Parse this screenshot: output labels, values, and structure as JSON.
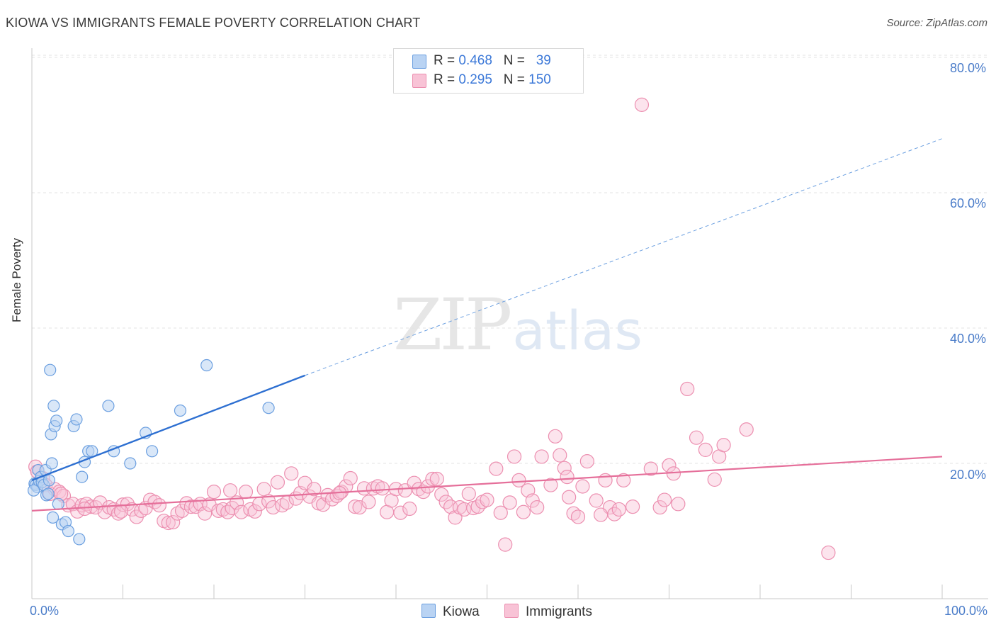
{
  "title": "KIOWA VS IMMIGRANTS FEMALE POVERTY CORRELATION CHART",
  "source": "Source: ZipAtlas.com",
  "watermark": {
    "zip": "ZIP",
    "atlas": "atlas"
  },
  "legend": {
    "kiowa": {
      "r_label": "R =",
      "r_value": "0.468",
      "n_label": "N =",
      "n_value": "39"
    },
    "immigrants": {
      "r_label": "R =",
      "r_value": "0.295",
      "n_label": "N =",
      "n_value": "150"
    }
  },
  "colors": {
    "kiowa_fill": "#b9d3f3",
    "kiowa_stroke": "#6b9fe0",
    "kiowa_line": "#2d6fd1",
    "imm_fill": "#f8c3d6",
    "imm_stroke": "#ec8fb0",
    "imm_line": "#e56f9a",
    "grid": "#e3e3e3",
    "axis_text": "#4a7cc9"
  },
  "chart_data": {
    "type": "scatter",
    "title": "KIOWA VS IMMIGRANTS FEMALE POVERTY CORRELATION CHART",
    "xlabel": "",
    "ylabel": "Female Poverty",
    "xlim": [
      0,
      100
    ],
    "ylim": [
      0,
      82
    ],
    "x_tick_labels": [
      "0.0%",
      "100.0%"
    ],
    "y_ticks": [
      20,
      40,
      60,
      80
    ],
    "y_tick_labels": [
      "20.0%",
      "40.0%",
      "60.0%",
      "80.0%"
    ],
    "grid": true,
    "legend_position": "top-center",
    "series": [
      {
        "name": "Kiowa",
        "r": 0.468,
        "n": 39,
        "trend": {
          "x0": 0,
          "y0": 17.5,
          "x1": 30,
          "y1": 33.0,
          "dash_to_x": 100,
          "dash_to_y": 68.0
        },
        "points": [
          [
            0.3,
            17.0
          ],
          [
            0.4,
            16.8
          ],
          [
            0.6,
            16.5
          ],
          [
            0.8,
            17.4
          ],
          [
            0.7,
            19.0
          ],
          [
            1.0,
            18.0
          ],
          [
            1.1,
            17.2
          ],
          [
            1.3,
            16.8
          ],
          [
            1.5,
            19.0
          ],
          [
            1.6,
            15.3
          ],
          [
            1.8,
            15.5
          ],
          [
            1.9,
            17.5
          ],
          [
            2.0,
            33.8
          ],
          [
            2.1,
            24.3
          ],
          [
            2.2,
            20.0
          ],
          [
            2.3,
            12.0
          ],
          [
            2.4,
            28.5
          ],
          [
            2.5,
            25.5
          ],
          [
            2.7,
            26.3
          ],
          [
            2.9,
            14.0
          ],
          [
            3.3,
            11.0
          ],
          [
            3.7,
            11.3
          ],
          [
            4.0,
            10.0
          ],
          [
            4.6,
            25.5
          ],
          [
            4.9,
            26.5
          ],
          [
            5.2,
            8.8
          ],
          [
            5.5,
            18.0
          ],
          [
            5.8,
            20.2
          ],
          [
            6.2,
            21.8
          ],
          [
            6.6,
            21.8
          ],
          [
            8.4,
            28.5
          ],
          [
            9.0,
            21.8
          ],
          [
            10.8,
            20.0
          ],
          [
            12.5,
            24.5
          ],
          [
            13.2,
            21.8
          ],
          [
            16.3,
            27.8
          ],
          [
            19.2,
            34.5
          ],
          [
            26.0,
            28.2
          ],
          [
            0.2,
            16.0
          ]
        ]
      },
      {
        "name": "Immigrants",
        "r": 0.295,
        "n": 150,
        "trend": {
          "x0": 0,
          "y0": 13.0,
          "x1": 100,
          "y1": 21.0
        },
        "points": [
          [
            0.4,
            19.5
          ],
          [
            0.6,
            18.8
          ],
          [
            1.2,
            17.8
          ],
          [
            1.5,
            16.8
          ],
          [
            2.0,
            15.5
          ],
          [
            2.5,
            16.2
          ],
          [
            3.0,
            15.8
          ],
          [
            3.5,
            15.2
          ],
          [
            4.0,
            13.8
          ],
          [
            4.5,
            14.0
          ],
          [
            5.0,
            12.9
          ],
          [
            5.5,
            13.8
          ],
          [
            6.0,
            14.0
          ],
          [
            6.5,
            13.6
          ],
          [
            7.0,
            13.5
          ],
          [
            7.5,
            14.2
          ],
          [
            8.0,
            12.8
          ],
          [
            8.5,
            13.5
          ],
          [
            9.0,
            13.2
          ],
          [
            9.5,
            12.6
          ],
          [
            10.0,
            13.9
          ],
          [
            10.5,
            14.0
          ],
          [
            11.0,
            13.2
          ],
          [
            11.5,
            12.1
          ],
          [
            12.0,
            13.0
          ],
          [
            12.5,
            13.4
          ],
          [
            13.0,
            14.6
          ],
          [
            13.5,
            14.3
          ],
          [
            14.0,
            13.8
          ],
          [
            14.5,
            11.5
          ],
          [
            15.0,
            11.2
          ],
          [
            15.5,
            11.3
          ],
          [
            16.0,
            12.6
          ],
          [
            16.5,
            13.0
          ],
          [
            17.0,
            14.1
          ],
          [
            17.5,
            13.6
          ],
          [
            18.0,
            13.6
          ],
          [
            18.5,
            14.0
          ],
          [
            19.0,
            12.6
          ],
          [
            19.5,
            13.9
          ],
          [
            20.0,
            15.8
          ],
          [
            20.5,
            13.0
          ],
          [
            21.0,
            13.2
          ],
          [
            21.5,
            12.8
          ],
          [
            22.0,
            13.4
          ],
          [
            22.5,
            14.2
          ],
          [
            23.0,
            12.8
          ],
          [
            23.5,
            15.8
          ],
          [
            24.0,
            13.2
          ],
          [
            24.5,
            12.9
          ],
          [
            25.0,
            14.0
          ],
          [
            25.5,
            16.2
          ],
          [
            26.0,
            14.4
          ],
          [
            26.5,
            13.5
          ],
          [
            27.0,
            17.2
          ],
          [
            27.5,
            13.8
          ],
          [
            28.0,
            14.2
          ],
          [
            28.5,
            18.5
          ],
          [
            29.0,
            14.8
          ],
          [
            29.5,
            15.6
          ],
          [
            30.0,
            17.1
          ],
          [
            30.5,
            15.1
          ],
          [
            31.0,
            16.2
          ],
          [
            31.5,
            14.1
          ],
          [
            32.0,
            13.9
          ],
          [
            32.5,
            15.3
          ],
          [
            33.0,
            14.7
          ],
          [
            33.5,
            15.2
          ],
          [
            34.0,
            15.8
          ],
          [
            34.5,
            16.6
          ],
          [
            35.0,
            17.8
          ],
          [
            35.5,
            13.6
          ],
          [
            36.0,
            13.5
          ],
          [
            36.5,
            16.3
          ],
          [
            37.0,
            14.3
          ],
          [
            37.5,
            16.3
          ],
          [
            38.0,
            16.6
          ],
          [
            38.5,
            16.3
          ],
          [
            39.0,
            12.8
          ],
          [
            39.5,
            14.5
          ],
          [
            40.0,
            16.2
          ],
          [
            40.5,
            12.7
          ],
          [
            41.0,
            16.0
          ],
          [
            41.5,
            13.3
          ],
          [
            42.0,
            17.1
          ],
          [
            42.5,
            16.2
          ],
          [
            43.0,
            15.8
          ],
          [
            43.5,
            16.6
          ],
          [
            44.0,
            17.7
          ],
          [
            44.5,
            17.7
          ],
          [
            45.0,
            15.4
          ],
          [
            45.5,
            14.3
          ],
          [
            46.0,
            13.6
          ],
          [
            46.5,
            12.0
          ],
          [
            47.0,
            13.5
          ],
          [
            47.5,
            13.2
          ],
          [
            48.0,
            15.5
          ],
          [
            48.5,
            13.4
          ],
          [
            49.0,
            13.6
          ],
          [
            49.5,
            14.3
          ],
          [
            50.0,
            14.6
          ],
          [
            51.0,
            19.2
          ],
          [
            51.5,
            12.7
          ],
          [
            52.0,
            8.0
          ],
          [
            52.5,
            14.2
          ],
          [
            53.0,
            21.0
          ],
          [
            53.5,
            17.5
          ],
          [
            54.0,
            12.8
          ],
          [
            54.5,
            16.0
          ],
          [
            55.0,
            14.5
          ],
          [
            55.5,
            13.5
          ],
          [
            56.0,
            21.0
          ],
          [
            57.0,
            16.8
          ],
          [
            57.5,
            24.0
          ],
          [
            58.0,
            21.2
          ],
          [
            58.5,
            19.3
          ],
          [
            59.0,
            15.0
          ],
          [
            59.5,
            12.6
          ],
          [
            60.0,
            12.1
          ],
          [
            60.5,
            16.6
          ],
          [
            61.0,
            20.3
          ],
          [
            62.0,
            14.5
          ],
          [
            63.0,
            17.5
          ],
          [
            63.5,
            13.5
          ],
          [
            64.0,
            12.5
          ],
          [
            64.5,
            13.2
          ],
          [
            65.0,
            17.5
          ],
          [
            67.0,
            73.0
          ],
          [
            68.0,
            19.2
          ],
          [
            69.0,
            13.5
          ],
          [
            69.5,
            14.6
          ],
          [
            70.0,
            19.7
          ],
          [
            70.5,
            18.5
          ],
          [
            71.0,
            14.0
          ],
          [
            72.0,
            31.0
          ],
          [
            73.0,
            23.8
          ],
          [
            74.0,
            22.0
          ],
          [
            75.0,
            17.6
          ],
          [
            75.5,
            21.0
          ],
          [
            76.0,
            22.7
          ],
          [
            78.5,
            25.0
          ],
          [
            87.5,
            6.8
          ],
          [
            62.5,
            12.4
          ],
          [
            66.0,
            13.6
          ],
          [
            58.8,
            18.0
          ],
          [
            33.8,
            15.6
          ],
          [
            21.8,
            16.0
          ],
          [
            9.8,
            12.9
          ],
          [
            5.8,
            13.3
          ],
          [
            3.2,
            15.5
          ]
        ]
      }
    ]
  },
  "bottom_legend": {
    "kiowa": "Kiowa",
    "immigrants": "Immigrants"
  }
}
